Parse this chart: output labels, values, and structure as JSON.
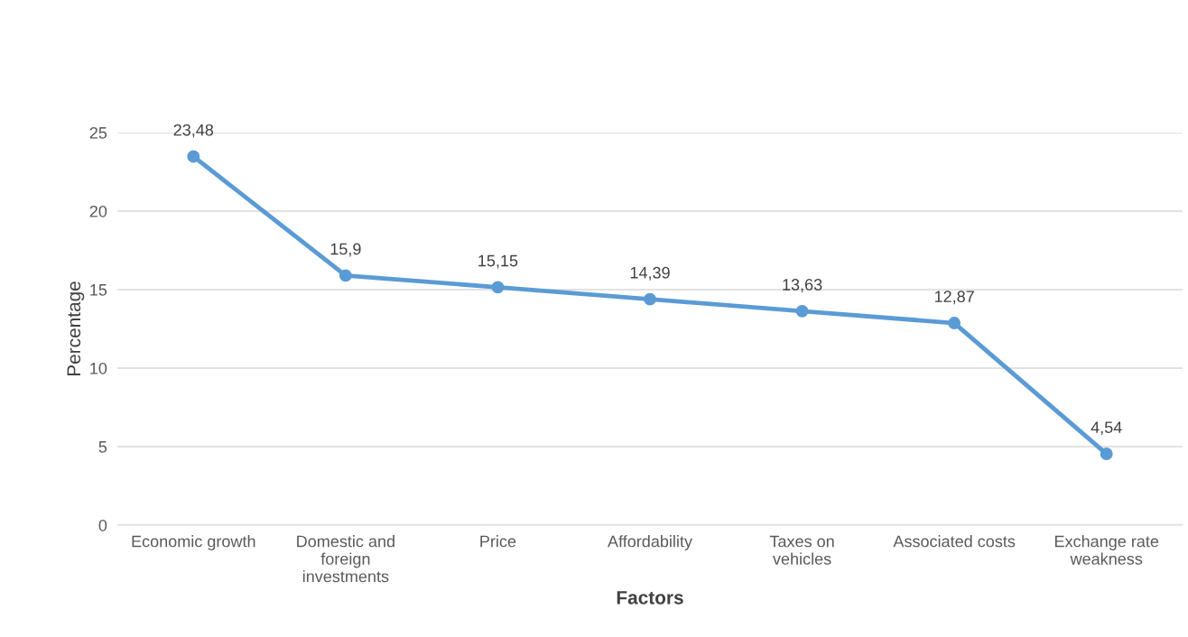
{
  "chart_data": {
    "type": "line",
    "xlabel": "Factors",
    "ylabel": "Percentage",
    "categories": [
      "Economic growth",
      "Domestic and foreign investments",
      "Price",
      "Affordability",
      "Taxes on vehicles",
      "Associated costs",
      "Exchange rate weakness"
    ],
    "series": [
      {
        "color": "#5b9bd5",
        "values": [
          23.48,
          15.9,
          15.15,
          14.39,
          13.63,
          12.87,
          4.54
        ],
        "value_labels": [
          "23,48",
          "15,9",
          "15,15",
          "14,39",
          "13,63",
          "12,87",
          "4,54"
        ]
      }
    ],
    "ylim": [
      0,
      25
    ],
    "yticks": [
      0,
      5,
      10,
      15,
      20,
      25
    ],
    "grid": "y",
    "marker": "circle",
    "line_style": "solid"
  }
}
